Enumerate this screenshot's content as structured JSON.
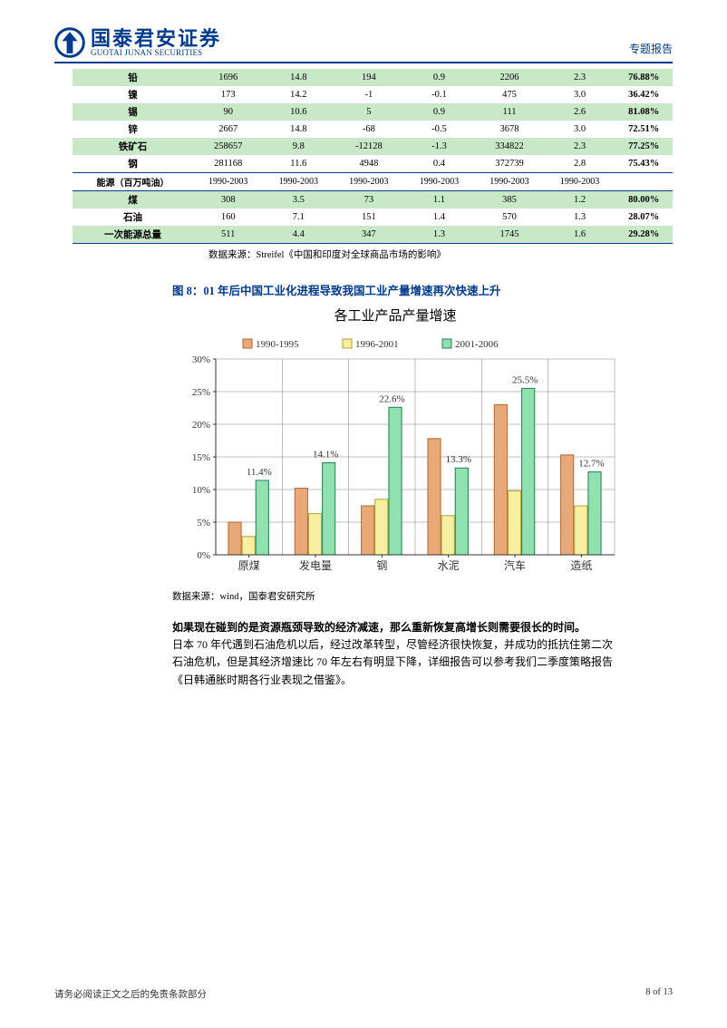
{
  "header": {
    "logo_cn": "国泰君安证券",
    "logo_en": "GUOTAI JUNAN SECURITIES",
    "tag": "专题报告"
  },
  "table": {
    "columns": 8,
    "rows": [
      {
        "band": "green",
        "cells": [
          "铅",
          "1696",
          "14.8",
          "194",
          "0.9",
          "2206",
          "2.3",
          "76.88%"
        ]
      },
      {
        "band": "white",
        "cells": [
          "镍",
          "173",
          "14.2",
          "-1",
          "-0.1",
          "475",
          "3.0",
          "36.42%"
        ]
      },
      {
        "band": "green",
        "cells": [
          "锡",
          "90",
          "10.6",
          "5",
          "0.9",
          "111",
          "2.6",
          "81.08%"
        ]
      },
      {
        "band": "white",
        "cells": [
          "锌",
          "2667",
          "14.8",
          "-68",
          "-0.5",
          "3678",
          "3.0",
          "72.51%"
        ]
      },
      {
        "band": "green",
        "cells": [
          "铁矿石",
          "258657",
          "9.8",
          "-12128",
          "-1.3",
          "334822",
          "2.3",
          "77.25%"
        ]
      },
      {
        "band": "white",
        "cells": [
          "钢",
          "281168",
          "11.6",
          "4948",
          "0.4",
          "372739",
          "2.8",
          "75.43%"
        ]
      }
    ],
    "subheader": {
      "label": "能源（百万吨油）",
      "cells": [
        "1990-2003",
        "1990-2003",
        "1990-2003",
        "1990-2003",
        "1990-2003",
        "1990-2003",
        ""
      ]
    },
    "rows2": [
      {
        "band": "green",
        "cells": [
          "煤",
          "308",
          "3.5",
          "73",
          "1.1",
          "385",
          "1.2",
          "80.00%"
        ]
      },
      {
        "band": "white",
        "cells": [
          "石油",
          "160",
          "7.1",
          "151",
          "1.4",
          "570",
          "1.3",
          "28.07%"
        ]
      },
      {
        "band": "green",
        "cells": [
          "一次能源总量",
          "511",
          "4.4",
          "347",
          "1.3",
          "1745",
          "1.6",
          "29.28%"
        ],
        "last": true
      }
    ],
    "source": "数据来源：Streifel《中国和印度对全球商品市场的影响》"
  },
  "figure": {
    "title": "图 8：01 年后中国工业化进程导致我国工业产量增速再次快速上升",
    "chart_title": "各工业产品产量增速",
    "legend": [
      "1990-1995",
      "1996-2001",
      "2001-2006"
    ],
    "categories": [
      "原煤",
      "发电量",
      "钢",
      "水泥",
      "汽车",
      "造纸"
    ],
    "series_colors": [
      "#e8a878",
      "#f8f0a0",
      "#90e0b0"
    ],
    "series_borders": [
      "#b06830",
      "#b0a030",
      "#208050"
    ],
    "values": [
      [
        5.0,
        10.2,
        7.5,
        17.8,
        23.0,
        15.3
      ],
      [
        2.8,
        6.3,
        8.5,
        6.0,
        9.8,
        7.5
      ],
      [
        11.4,
        14.1,
        22.6,
        13.3,
        25.5,
        12.7
      ]
    ],
    "labels_on": [
      {
        "series": 2,
        "cat": 0,
        "text": "11.4%"
      },
      {
        "series": 2,
        "cat": 1,
        "text": "14.1%"
      },
      {
        "series": 2,
        "cat": 2,
        "text": "22.6%"
      },
      {
        "series": 2,
        "cat": 3,
        "text": "13.3%"
      },
      {
        "series": 2,
        "cat": 4,
        "text": "25.5%"
      },
      {
        "series": 2,
        "cat": 5,
        "text": "12.7%"
      }
    ],
    "ylim": [
      0,
      30
    ],
    "ytick_step": 5,
    "ytick_format_pct": true,
    "background_color": "#ffffff",
    "grid_color": "#808080",
    "grid": true,
    "bar_group_width": 0.62,
    "source": "数据来源：wind，国泰君安研究所"
  },
  "body": {
    "p1_bold": "如果现在碰到的是资源瓶颈导致的经济减速，那么重新恢复高增长则需要很长的时间。",
    "p2": "日本 70 年代遇到石油危机以后，经过改革转型，尽管经济很快恢复，并成功的抵抗住第二次石油危机，但是其经济增速比 70 年左右有明显下降，详细报告可以参考我们二季度策略报告《日韩通胀时期各行业表现之借鉴》。"
  },
  "footer": {
    "left": "请务必阅读正文之后的免责条款部分",
    "right": "8 of 13"
  }
}
